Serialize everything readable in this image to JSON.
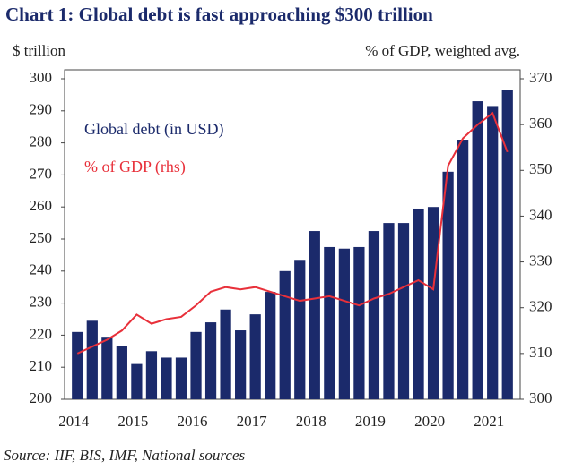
{
  "chart_data": {
    "type": "bar-line",
    "title": "Chart 1: Global debt is fast approaching $300 trillion",
    "y_label": "$ trillion",
    "y2_label": "% of GDP, weighted avg.",
    "source": "Source: IIF, BIS, IMF, National sources",
    "categories": [
      "2014",
      null,
      null,
      null,
      "2015",
      null,
      null,
      null,
      "2016",
      null,
      null,
      null,
      "2017",
      null,
      null,
      null,
      "2018",
      null,
      null,
      null,
      "2019",
      null,
      null,
      null,
      "2020",
      null,
      null,
      null,
      "2021",
      null
    ],
    "series": [
      {
        "name": "Global debt (in USD)",
        "color": "#1b2a6b",
        "type": "bar",
        "values": [
          221,
          224.5,
          219.5,
          216.5,
          211,
          215,
          213,
          213,
          221,
          224,
          228,
          221.5,
          226.5,
          233.5,
          240,
          243.5,
          252.5,
          247.5,
          247,
          247.5,
          252.5,
          255,
          255,
          259.5,
          260,
          271,
          281,
          293,
          291.5,
          296.5
        ]
      },
      {
        "name": "% of GDP (rhs)",
        "color": "#e8303a",
        "type": "line",
        "axis": "y2",
        "values": [
          310,
          311.5,
          313,
          315,
          318.5,
          316.5,
          317.5,
          318,
          320.5,
          323.5,
          324.5,
          324,
          324.5,
          323.5,
          322.5,
          321.5,
          322,
          322.5,
          321.5,
          320.5,
          322,
          323,
          324.5,
          326,
          324,
          351,
          357,
          360,
          362.5,
          354
        ]
      }
    ],
    "ylim": [
      200,
      300
    ],
    "yticks": [
      200,
      210,
      220,
      230,
      240,
      250,
      260,
      270,
      280,
      290,
      300
    ],
    "y2lim": [
      300,
      370
    ],
    "y2ticks": [
      300,
      310,
      320,
      330,
      340,
      350,
      360,
      370
    ]
  }
}
